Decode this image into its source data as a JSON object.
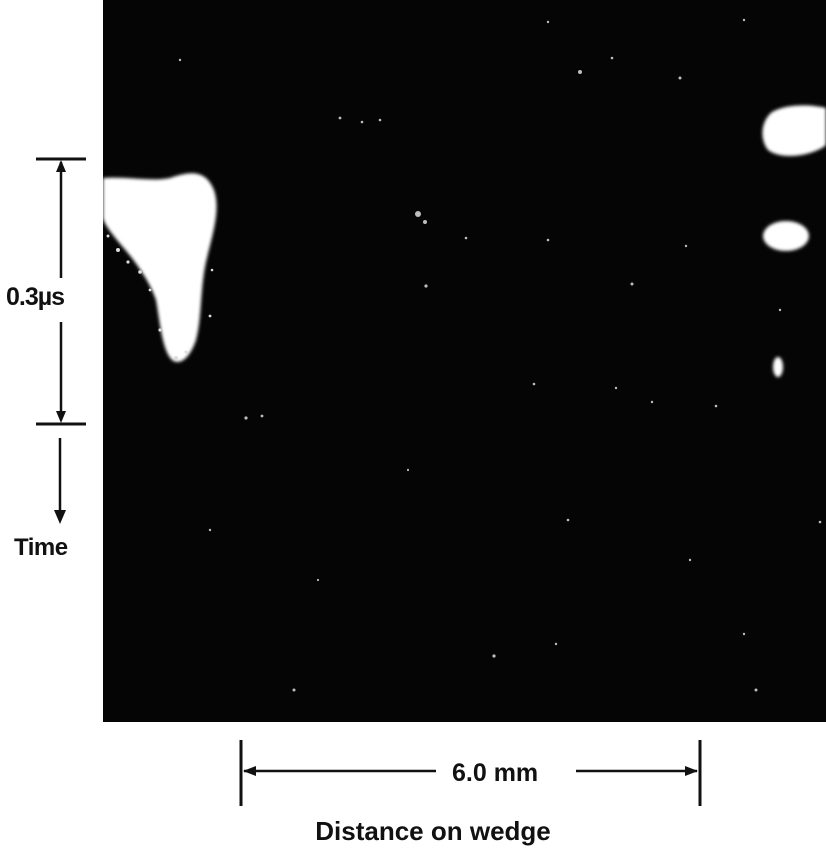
{
  "figure": {
    "time_scale_label": "0.3µs",
    "time_axis_label": "Time",
    "distance_scale_label": "6.0 mm",
    "distance_axis_label": "Distance on wedge"
  },
  "colors": {
    "photo_background": "#050505",
    "flash": "#ffffff",
    "ink": "#111111",
    "page": "#ffffff"
  }
}
